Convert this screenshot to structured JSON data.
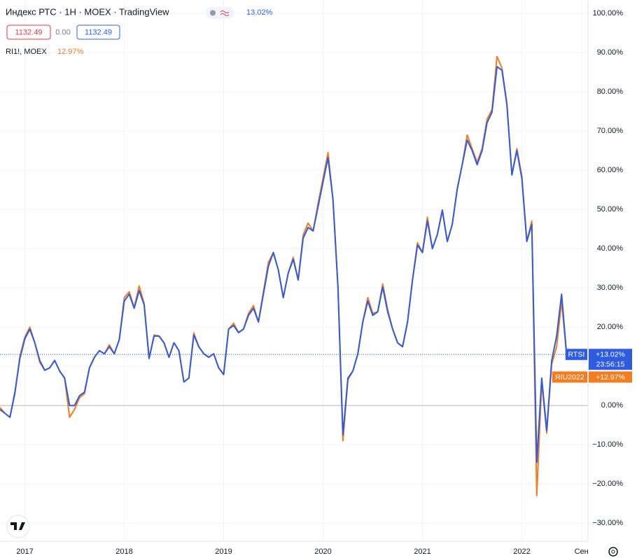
{
  "chart_data": {
    "type": "line",
    "title": "Индекс РТС · 1H · MOEX · TradingView",
    "title_value": "13.02%",
    "ohlc": [
      "1132.49",
      "0.00",
      "1132.49"
    ],
    "subtitle": "RI1!, MOEX",
    "subtitle_value": "12.97%",
    "countdown": "23:56:15",
    "categories": [
      null,
      null,
      null,
      null,
      null,
      "2017",
      null,
      null,
      null,
      null,
      null,
      null,
      null,
      null,
      null,
      null,
      null,
      null,
      null,
      null,
      null,
      null,
      null,
      null,
      null,
      "2018",
      null,
      null,
      null,
      null,
      null,
      null,
      null,
      null,
      null,
      null,
      null,
      null,
      null,
      null,
      null,
      null,
      null,
      null,
      null,
      "2019",
      null,
      null,
      null,
      null,
      null,
      null,
      null,
      null,
      null,
      null,
      null,
      null,
      null,
      null,
      null,
      null,
      null,
      null,
      null,
      "2020",
      null,
      null,
      null,
      null,
      null,
      null,
      null,
      null,
      null,
      null,
      null,
      null,
      null,
      null,
      null,
      null,
      null,
      null,
      null,
      "2021",
      null,
      null,
      null,
      null,
      null,
      null,
      null,
      null,
      null,
      null,
      null,
      null,
      null,
      null,
      null,
      null,
      null,
      null,
      null,
      "2022",
      null,
      null,
      null,
      null,
      null,
      null,
      null,
      null,
      null,
      null,
      null,
      "Сен"
    ],
    "series": [
      {
        "name": "RIU2022",
        "color": "#f57c1f",
        "last_label": "+12.97%",
        "values": [
          -0.5,
          -2,
          -3,
          3,
          12.5,
          17.5,
          20,
          16,
          11,
          9,
          9.6,
          11.5,
          8.8,
          7,
          -3,
          -1,
          2,
          3,
          9.6,
          12.3,
          14,
          13.2,
          15.5,
          13.2,
          16.8,
          27.5,
          29,
          25,
          30.5,
          26,
          12,
          18,
          17.7,
          16,
          12.3,
          16,
          14,
          6,
          7,
          18.5,
          15,
          13.2,
          12.3,
          13.2,
          9.6,
          7.9,
          19.5,
          21,
          18.6,
          19.5,
          23.5,
          25.5,
          21.3,
          29,
          36.5,
          39,
          34.6,
          27.5,
          33.8,
          37.8,
          32,
          43.5,
          46.5,
          44.5,
          51.5,
          58,
          64.5,
          52.5,
          30.2,
          -9,
          6.5,
          8.8,
          13.2,
          21.3,
          27.5,
          23.5,
          23.9,
          31,
          24.5,
          19.5,
          16,
          15,
          21.3,
          32,
          41.5,
          39,
          48,
          40,
          43.6,
          49.8,
          41.8,
          46.2,
          55.2,
          61.4,
          69,
          65.5,
          62,
          65.5,
          73,
          75.5,
          89,
          86,
          77,
          58.8,
          65.5,
          58.5,
          42,
          47,
          -23,
          6,
          -7,
          10.5,
          15,
          26.6,
          12.97,
          null,
          null,
          null
        ]
      },
      {
        "name": "RTSI",
        "color": "#2e5be0",
        "last_label": "+13.02%",
        "values": [
          -1,
          -2,
          -3,
          3.4,
          12,
          17,
          19.5,
          16,
          11.5,
          9,
          9.6,
          11.5,
          8.8,
          7,
          0,
          0,
          2.5,
          3.4,
          9.6,
          12.3,
          14,
          13.2,
          15,
          13.2,
          16.8,
          26.6,
          28.4,
          24.8,
          29.3,
          25.7,
          12,
          17.7,
          17.7,
          16,
          12.3,
          16,
          14,
          6,
          7,
          18,
          15,
          13.2,
          12.3,
          13.2,
          9.6,
          7.9,
          19.5,
          20.4,
          18.6,
          19.5,
          23,
          24.8,
          21.3,
          28.4,
          35.5,
          39,
          34.6,
          27.5,
          33.8,
          37.3,
          32,
          42.7,
          45.4,
          44.5,
          50.7,
          57,
          63.2,
          52.5,
          30.2,
          -7.5,
          7,
          8.8,
          13.2,
          21.3,
          26.6,
          23,
          23.9,
          30.2,
          23.9,
          19.5,
          16,
          15,
          21.3,
          32,
          40.9,
          39,
          47.1,
          40,
          43.6,
          49.8,
          41.8,
          46.2,
          55.2,
          61.4,
          67.7,
          65,
          61.4,
          65,
          72.1,
          74.8,
          86.4,
          85.5,
          76.6,
          58.8,
          65,
          57.9,
          41.8,
          46.2,
          -14.5,
          7,
          -6.4,
          11.4,
          17.7,
          28.4,
          13.02,
          null,
          null,
          null
        ]
      }
    ],
    "ylim": [
      -34.6,
      103.4
    ],
    "yticks": [
      {
        "value": -30,
        "label": "−30.00%"
      },
      {
        "value": -20,
        "label": "−20.00%"
      },
      {
        "value": -10,
        "label": "−10.00%"
      },
      {
        "value": 0,
        "label": "0.00%"
      },
      {
        "value": 10,
        "label": "10.00%"
      },
      {
        "value": 20,
        "label": "20.00%"
      },
      {
        "value": 30,
        "label": "30.00%"
      },
      {
        "value": 40,
        "label": "40.00%"
      },
      {
        "value": 50,
        "label": "50.00%"
      },
      {
        "value": 60,
        "label": "60.00%"
      },
      {
        "value": 70,
        "label": "70.00%"
      },
      {
        "value": 80,
        "label": "80.00%"
      },
      {
        "value": 90,
        "label": "90.00%"
      },
      {
        "value": 100,
        "label": "100.00%"
      }
    ],
    "grid": true
  }
}
